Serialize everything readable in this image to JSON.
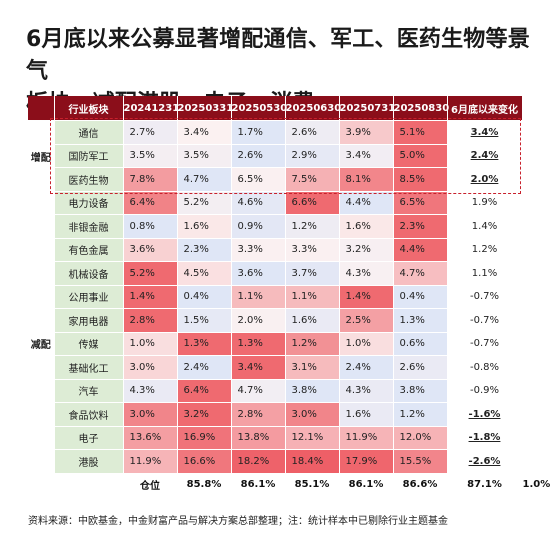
{
  "title": [
    "6月底以来公募显著增配通信、军工、医药生物等景气",
    "板块，减配港股、电子、消费"
  ],
  "source": "资料来源：中欧基金，中金财富产品与解决方案总部整理；注：统计样本中已剔除行业主题基金",
  "chart_data": {
    "type": "table",
    "columns": [
      "",
      "行业板块",
      "20241231",
      "20250331",
      "20250530",
      "20250630",
      "20250731",
      "20250830",
      "6月底以来变化"
    ],
    "groups": [
      {
        "label": "增配",
        "start": 0,
        "end": 2
      },
      {
        "label": "减配",
        "start": 3,
        "end": 15
      }
    ],
    "rows": [
      {
        "name": "通信",
        "values": [
          2.7,
          3.4,
          1.7,
          2.6,
          3.9,
          5.1
        ],
        "change": "3.4%",
        "emph": true
      },
      {
        "name": "国防军工",
        "values": [
          3.5,
          3.5,
          2.6,
          2.9,
          3.4,
          5.0
        ],
        "change": "2.4%",
        "emph": true
      },
      {
        "name": "医药生物",
        "values": [
          7.8,
          4.7,
          6.5,
          7.5,
          8.1,
          8.5
        ],
        "change": "2.0%",
        "emph": true
      },
      {
        "name": "电力设备",
        "values": [
          6.4,
          5.2,
          4.6,
          6.6,
          4.4,
          6.5
        ],
        "change": "1.9%",
        "emph": false
      },
      {
        "name": "非银金融",
        "values": [
          0.8,
          1.6,
          0.9,
          1.2,
          1.6,
          2.3
        ],
        "change": "1.4%",
        "emph": false
      },
      {
        "name": "有色金属",
        "values": [
          3.6,
          2.3,
          3.3,
          3.3,
          3.2,
          4.4
        ],
        "change": "1.2%",
        "emph": false
      },
      {
        "name": "机械设备",
        "values": [
          5.2,
          4.5,
          3.6,
          3.7,
          4.3,
          4.7
        ],
        "change": "1.1%",
        "emph": false
      },
      {
        "name": "公用事业",
        "values": [
          1.4,
          0.4,
          1.1,
          1.1,
          1.4,
          0.4
        ],
        "change": "-0.7%",
        "emph": false
      },
      {
        "name": "家用电器",
        "values": [
          2.8,
          1.5,
          2.0,
          1.6,
          2.5,
          1.3
        ],
        "change": "-0.7%",
        "emph": false
      },
      {
        "name": "传媒",
        "values": [
          1.0,
          1.3,
          1.3,
          1.2,
          1.0,
          0.6
        ],
        "change": "-0.7%",
        "emph": false
      },
      {
        "name": "基础化工",
        "values": [
          3.0,
          2.4,
          3.4,
          3.1,
          2.4,
          2.6
        ],
        "change": "-0.8%",
        "emph": false
      },
      {
        "name": "汽车",
        "values": [
          4.3,
          6.4,
          4.7,
          3.8,
          4.3,
          3.8
        ],
        "change": "-0.9%",
        "emph": false
      },
      {
        "name": "食品饮料",
        "values": [
          3.0,
          3.2,
          2.8,
          3.0,
          1.6,
          1.2
        ],
        "change": "-1.6%",
        "emph": true
      },
      {
        "name": "电子",
        "values": [
          13.6,
          16.9,
          13.8,
          12.1,
          11.9,
          12.0
        ],
        "change": "-1.8%",
        "emph": true
      },
      {
        "name": "港股",
        "values": [
          11.9,
          16.6,
          18.2,
          18.4,
          17.9,
          15.5
        ],
        "change": "-2.6%",
        "emph": true
      }
    ],
    "total": {
      "name": "仓位",
      "values": [
        "85.8%",
        "86.1%",
        "85.1%",
        "86.1%",
        "86.6%",
        "87.1%"
      ],
      "change": "1.0%"
    },
    "colors": {
      "header": "#8b0e1a",
      "industry_cell": "#ddecd5",
      "low": "#dfe6f6",
      "mid": "#fbf1f1",
      "high": "#ef6a70",
      "highlight_border": "#c8202c"
    }
  }
}
